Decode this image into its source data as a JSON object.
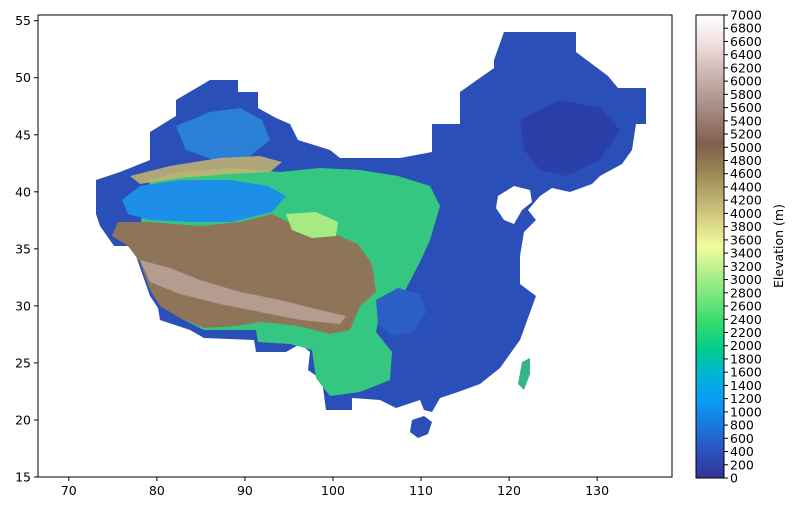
{
  "map": {
    "type": "elevation-raster",
    "region_shown": "China",
    "x_axis": {
      "range": [
        66.5,
        138.5
      ],
      "ticks": [
        70,
        80,
        90,
        100,
        110,
        120,
        130
      ]
    },
    "y_axis": {
      "range": [
        15,
        55.5
      ],
      "ticks": [
        15,
        20,
        25,
        30,
        35,
        40,
        45,
        50,
        55
      ]
    }
  },
  "colorbar": {
    "label": "Elevation (m)",
    "range": [
      0,
      7000
    ],
    "ticks": [
      0,
      200,
      400,
      600,
      800,
      1000,
      1200,
      1400,
      1600,
      1800,
      2000,
      2200,
      2400,
      2600,
      2800,
      3000,
      3200,
      3400,
      3600,
      3800,
      4000,
      4200,
      4400,
      4600,
      4800,
      5000,
      5200,
      5400,
      5600,
      5800,
      6000,
      6200,
      6400,
      6600,
      6800,
      7000
    ],
    "colormap": "terrain",
    "colors": [
      "#333399",
      "#2b51bd",
      "#1b77dc",
      "#089cf8",
      "#00b4d6",
      "#00cd8c",
      "#33db6d",
      "#73e57d",
      "#b3f08c",
      "#f2fc9b",
      "#d8d285",
      "#b7ab6c",
      "#968252",
      "#805f4b",
      "#9c7f77",
      "#b8a09a",
      "#d4c0bc",
      "#f3e4e4",
      "#ffffff"
    ]
  }
}
